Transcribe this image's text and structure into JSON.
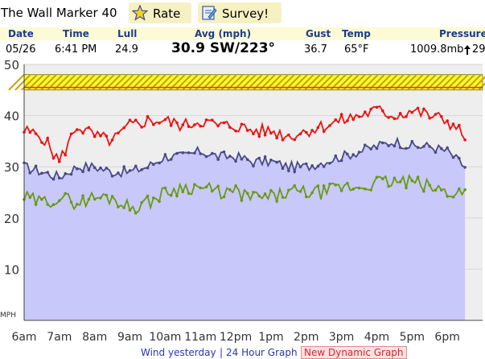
{
  "header": {
    "title": "The Wall Marker 40",
    "rate_label": "Rate",
    "survey_label": "Survey!"
  },
  "columns": {
    "date": "Date",
    "time": "Time",
    "lull": "Lull",
    "avg": "Avg (mph)",
    "gust": "Gust",
    "temp": "Temp",
    "pressure": "Pressure"
  },
  "reading": {
    "date": "05/26",
    "time": "6:41 PM",
    "lull": "24.9",
    "avg": "30.9 SW/223°",
    "gust": "36.7",
    "temp": "65°F",
    "pressure": "1009.8mb",
    "pressure_trend": "29"
  },
  "footer": {
    "link1": "Wind yesterday",
    "sep": "|",
    "link2": "24 Hour Graph",
    "link3": "New Dynamic Graph"
  },
  "colors": {
    "avg": "#4a4a8a",
    "gust": "#ee1111",
    "lull": "#6a9a10",
    "fill": "#c8c8fa",
    "plot_bg": "#eeeeee",
    "band": "#fafa30",
    "accent": "#1a3c8c"
  },
  "chart_data": {
    "type": "line",
    "ylabel": "MPH",
    "ylim": [
      0,
      50
    ],
    "yticks": [
      "50",
      "40",
      "30",
      "20",
      "10"
    ],
    "xticks": [
      "6am",
      "7am",
      "8am",
      "9am",
      "10am",
      "11am",
      "12pm",
      "1pm",
      "2pm",
      "3pm",
      "4pm",
      "5pm",
      "6pm"
    ],
    "x_hours": [
      6.0,
      6.5,
      7.0,
      7.5,
      8.0,
      8.5,
      9.0,
      9.5,
      10.0,
      10.5,
      11.0,
      11.5,
      12.0,
      12.5,
      13.0,
      13.5,
      14.0,
      14.5,
      15.0,
      15.5,
      16.0,
      16.5,
      17.0,
      17.5,
      18.0,
      18.5
    ],
    "gust_band": [
      45,
      48
    ],
    "series": [
      {
        "key": "gust",
        "values": [
          37,
          36,
          31,
          38,
          36,
          35,
          38,
          39,
          39,
          38,
          39,
          38,
          38,
          37,
          37,
          36,
          37,
          38,
          39,
          40,
          41,
          40,
          41,
          40,
          39,
          36
        ]
      },
      {
        "key": "avg",
        "values": [
          30,
          29,
          28,
          30,
          30,
          29,
          29,
          30,
          32,
          32,
          33,
          32,
          32,
          31,
          31,
          30,
          30,
          31,
          32,
          33,
          34,
          35,
          34,
          34,
          33,
          30
        ]
      },
      {
        "key": "lull",
        "values": [
          24,
          23,
          24,
          23,
          24,
          24,
          22,
          23,
          25,
          26,
          26,
          25,
          25,
          24,
          24,
          25,
          25,
          25,
          26,
          26,
          27,
          27,
          27,
          26,
          25,
          25
        ]
      }
    ]
  }
}
